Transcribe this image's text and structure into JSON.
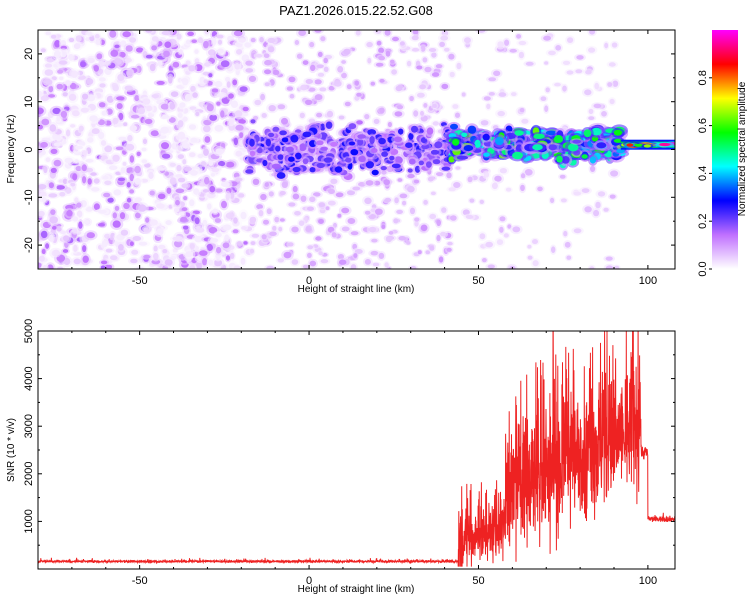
{
  "title": "PAZ1.2026.015.22.52.G08",
  "chart_data": [
    {
      "type": "heatmap",
      "title": "PAZ1.2026.015.22.52.G08",
      "xlabel": "Height of straight line (km)",
      "ylabel": "Frequency (Hz)",
      "xlim": [
        -80,
        108
      ],
      "ylim": [
        -25,
        25
      ],
      "xticks": [
        -50,
        0,
        50,
        100
      ],
      "yticks": [
        -20,
        -10,
        0,
        10,
        20
      ],
      "colorbar": {
        "label": "Normalized spectral amplitude",
        "range": [
          0,
          1
        ],
        "ticks": [
          "0.0",
          "0.2",
          "0.4",
          "0.6",
          "0.8"
        ],
        "colormap": [
          "#ffffff",
          "#c070ff",
          "#0000ff",
          "#00ffff",
          "#00ff00",
          "#ffff00",
          "#ff0000",
          "#ff00ff"
        ]
      },
      "regions": [
        {
          "x_range": [
            -80,
            -18
          ],
          "description": "broadband noise",
          "max_amplitude": 0.15
        },
        {
          "x_range": [
            -18,
            42
          ],
          "description": "signal emerging near 0 Hz",
          "center_hz": 0,
          "max_amplitude": 0.25
        },
        {
          "x_range": [
            42,
            92
          ],
          "description": "strong signal near 1 Hz",
          "center_hz": 1,
          "max_amplitude": 0.55
        },
        {
          "x_range": [
            92,
            108
          ],
          "description": "narrow tone near 1 Hz",
          "center_hz": 1,
          "max_amplitude": 0.95
        }
      ]
    },
    {
      "type": "line",
      "xlabel": "Height of straight line (km)",
      "ylabel": "SNR (10 * v/v)",
      "xlim": [
        -80,
        108
      ],
      "ylim": [
        0,
        5000
      ],
      "xticks": [
        -50,
        0,
        50,
        100
      ],
      "yticks": [
        1000,
        2000,
        3000,
        4000,
        5000
      ],
      "line_color": "#ee2222",
      "segments": [
        {
          "x_range": [
            -80,
            44
          ],
          "mean_snr": 160,
          "noise": 25
        },
        {
          "x_range": [
            44,
            58
          ],
          "mean_snr": 700,
          "noise": 900
        },
        {
          "x_range": [
            58,
            98
          ],
          "mean_snr": 2300,
          "noise": 1800,
          "peak": 5000
        },
        {
          "x_range": [
            98,
            100
          ],
          "mean_snr": 2450,
          "noise": 150
        },
        {
          "x_range": [
            100,
            108
          ],
          "mean_snr": 1050,
          "noise": 60
        }
      ]
    }
  ]
}
